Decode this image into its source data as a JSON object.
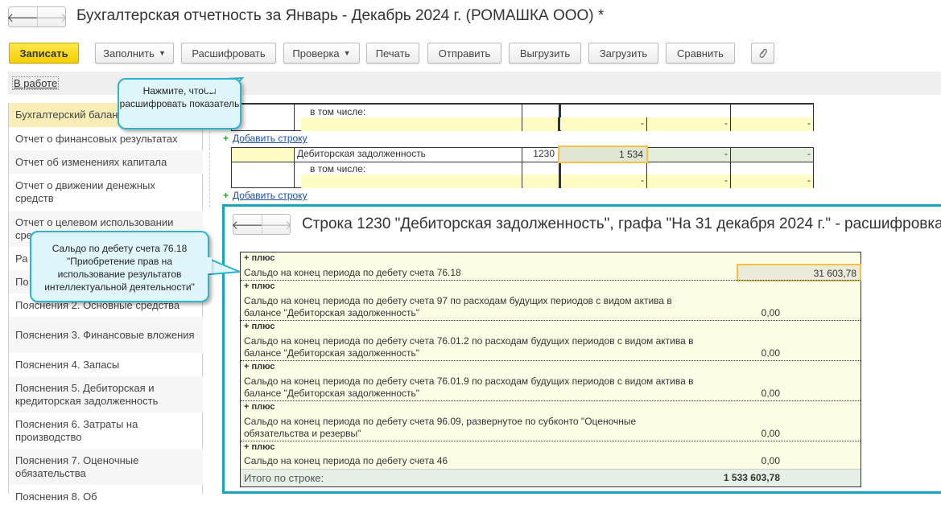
{
  "window": {
    "title": "Бухгалтерская отчетность за Январь - Декабрь 2024 г. (РОМАШКА ООО) *",
    "back": "🡐",
    "forward": "🡒"
  },
  "toolbar": {
    "save": "Записать",
    "fill": "Заполнить",
    "decode": "Расшифровать",
    "check": "Проверка",
    "print": "Печать",
    "send": "Отправить",
    "export": "Выгрузить",
    "import": "Загрузить",
    "compare": "Сравнить",
    "attach_icon": "paperclip-icon"
  },
  "status": {
    "label": "В работе"
  },
  "sidebar": {
    "items": [
      {
        "label": "Бухгалтерский баланс"
      },
      {
        "label": "Отчет о финансовых результатах"
      },
      {
        "label": "Отчет об изменениях капитала"
      },
      {
        "label": "Отчет о движении денежных средств"
      },
      {
        "label": "Отчет о целевом использовании средств"
      },
      {
        "label": "Ра"
      },
      {
        "label": "По"
      },
      {
        "label": "Пояснения 2. Основные средства"
      },
      {
        "label": "Пояснения 3. Финансовые вложения"
      },
      {
        "label": "Пояснения 4. Запасы"
      },
      {
        "label": "Пояснения 5. Дебиторская и кредиторская задолженность"
      },
      {
        "label": "Пояснения 6. Затраты на производство"
      },
      {
        "label": "Пояснения 7. Оценочные обязательства"
      },
      {
        "label": "Пояснения 8. Об"
      }
    ]
  },
  "report": {
    "including": "в том числе:",
    "dash": "-",
    "add_row": "Добавить строку",
    "row_name": "Дебиторская задолженность",
    "row_code": "1230",
    "row_value": "1 534"
  },
  "decoding": {
    "title": "Строка 1230 \"Дебиторская задолженность\", графа \"На 31 декабря 2024 г.\" - расшифровка ...",
    "plus": "+ плюс",
    "rows": [
      {
        "line1": "Сальдо на конец периода по дебету счета 76.18",
        "line2": "",
        "amount": "31 603,78"
      },
      {
        "line1": "Сальдо на конец периода по дебету счета 97 по расходам будущих периодов с видом актива в",
        "line2": "балансе \"Дебиторская задолженность\"",
        "amount": "0,00"
      },
      {
        "line1": "Сальдо на конец периода по дебету счета 76.01.2 по расходам будущих периодов с видом актива в",
        "line2": "балансе \"Дебиторская задолженность\"",
        "amount": "0,00"
      },
      {
        "line1": "Сальдо на конец периода по дебету счета 76.01.9 по расходам будущих периодов с видом актива в",
        "line2": "балансе \"Дебиторская задолженность\"",
        "amount": "0,00"
      },
      {
        "line1": "Сальдо на конец периода по дебету счета 96.09, развернутое по субконто \"Оценочные",
        "line2": "обязательства и резервы\"",
        "amount": "0,00"
      },
      {
        "line1": "Сальдо на конец периода по дебету счета 46",
        "line2": "",
        "amount": "0,00"
      }
    ],
    "total_label": "Итого по строке:",
    "total_amount": "1 533 603,78"
  },
  "callouts": {
    "decode_hint": "Нажмите, чтобы расшифровать показатель",
    "account_hint": "Сальдо по дебету счета 76.18 \"Приобретение прав на использование результатов интеллектуальной деятельности\""
  },
  "colors": {
    "accent_teal": "#18a3bd",
    "save_yellow": "#f4cf00",
    "highlight": "#f5c242"
  }
}
